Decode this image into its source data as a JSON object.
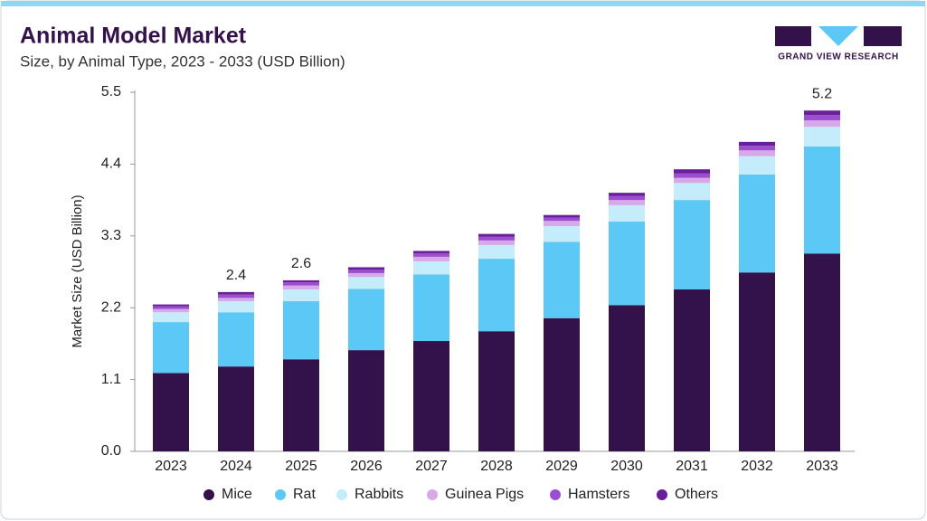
{
  "chart_data": {
    "type": "stacked_bar",
    "title": "Animal Model Market",
    "subtitle": "Size, by Animal Type, 2023 - 2033 (USD Billion)",
    "brand": "GRAND VIEW RESEARCH",
    "y_label": "Market Size (USD Billion)",
    "categories": [
      "2023",
      "2024",
      "2025",
      "2026",
      "2027",
      "2028",
      "2029",
      "2030",
      "2031",
      "2032",
      "2033"
    ],
    "series": [
      {
        "name": "Mice",
        "color": "#33114a",
        "values": [
          1.2,
          1.3,
          1.41,
          1.55,
          1.69,
          1.84,
          2.04,
          2.24,
          2.48,
          2.74,
          3.03
        ]
      },
      {
        "name": "Rat",
        "color": "#5bc8f5",
        "values": [
          0.78,
          0.83,
          0.89,
          0.94,
          1.02,
          1.11,
          1.17,
          1.28,
          1.37,
          1.5,
          1.64
        ]
      },
      {
        "name": "Rabbits",
        "color": "#c5ecfa",
        "values": [
          0.15,
          0.17,
          0.18,
          0.18,
          0.2,
          0.21,
          0.24,
          0.25,
          0.26,
          0.28,
          0.3
        ]
      },
      {
        "name": "Guinea Pigs",
        "color": "#d7a9e8",
        "values": [
          0.05,
          0.05,
          0.06,
          0.06,
          0.07,
          0.07,
          0.08,
          0.08,
          0.08,
          0.09,
          0.1
        ]
      },
      {
        "name": "Hamsters",
        "color": "#9b4fd0",
        "values": [
          0.04,
          0.05,
          0.05,
          0.05,
          0.05,
          0.06,
          0.05,
          0.06,
          0.07,
          0.07,
          0.08
        ]
      },
      {
        "name": "Others",
        "color": "#6a1f9a",
        "values": [
          0.03,
          0.04,
          0.03,
          0.04,
          0.04,
          0.04,
          0.04,
          0.05,
          0.06,
          0.06,
          0.07
        ]
      }
    ],
    "totals": [
      null,
      2.4,
      2.6,
      null,
      null,
      null,
      null,
      null,
      null,
      null,
      5.2
    ],
    "ylim": [
      0,
      5.5
    ],
    "yticks": [
      {
        "value": 0,
        "label": "0.0"
      },
      1.1,
      2.2,
      3.3,
      4.4,
      5.5
    ],
    "grid": false,
    "legend": "bottom"
  }
}
